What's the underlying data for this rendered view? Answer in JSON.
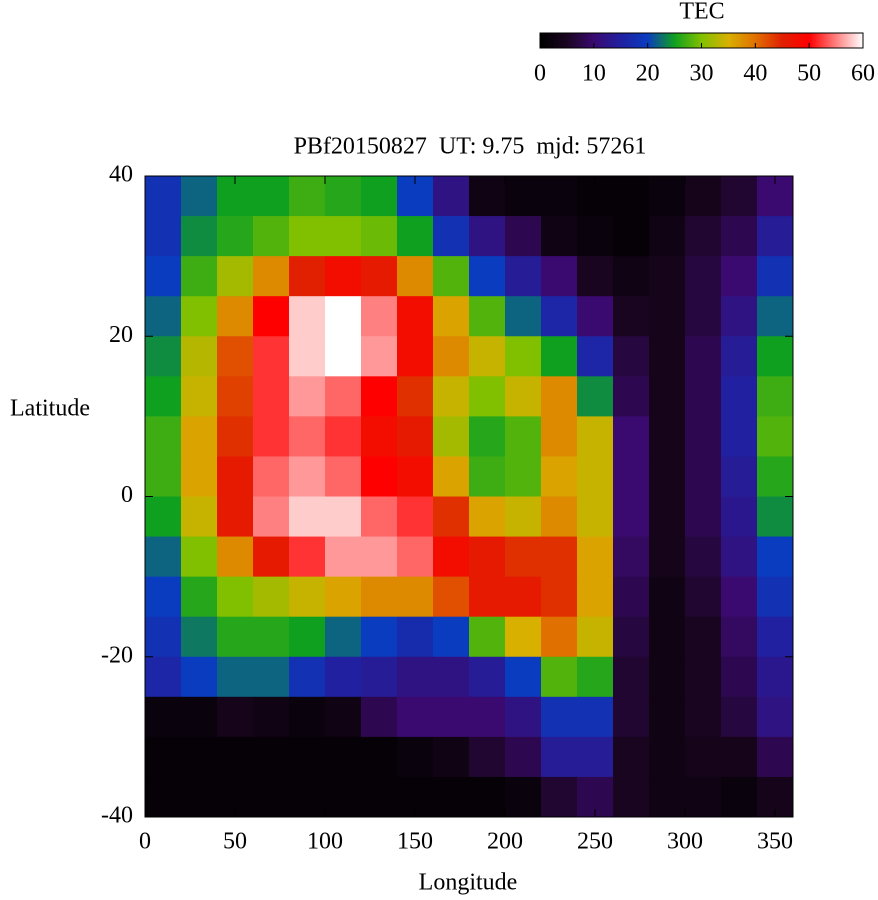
{
  "chart_data": {
    "type": "heatmap",
    "title": "PBf20150827  UT: 9.75  mjd: 57261",
    "x_label": "Longitude",
    "y_label": "Latitude",
    "colorbar_label": "TEC",
    "xlim": [
      0,
      360
    ],
    "xticks": [
      0,
      50,
      100,
      150,
      200,
      250,
      300,
      350
    ],
    "ylim": [
      -40,
      40
    ],
    "yticks": [
      -40,
      -20,
      0,
      20,
      40
    ],
    "zlim": [
      0,
      60
    ],
    "zticks": [
      0,
      10,
      20,
      30,
      40,
      50,
      60
    ],
    "colors": [
      "#000000",
      "#1a0520",
      "#3a0a70",
      "#2020a0",
      "#0a3cc0",
      "#10a020",
      "#80c000",
      "#d8b000",
      "#e07000",
      "#e02000",
      "#ff0000",
      "#ff8080",
      "#ffffff"
    ],
    "x": [
      10,
      30,
      50,
      70,
      90,
      110,
      130,
      150,
      170,
      190,
      210,
      230,
      250,
      270,
      290,
      310,
      330,
      350
    ],
    "y": [
      37.5,
      32.5,
      27.5,
      22.5,
      17.5,
      12.5,
      7.5,
      2.5,
      -2.5,
      -7.5,
      -12.5,
      -17.5,
      -22.5,
      -27.5,
      -32.5,
      -37.5
    ],
    "z": [
      [
        18,
        22,
        25,
        25,
        27,
        26,
        25,
        20,
        12,
        3,
        2,
        2,
        1,
        1,
        2,
        4,
        6,
        10
      ],
      [
        18,
        24,
        26,
        28,
        30,
        30,
        29,
        25,
        18,
        12,
        8,
        3,
        2,
        1,
        3,
        6,
        8,
        14
      ],
      [
        20,
        27,
        32,
        38,
        45,
        48,
        46,
        38,
        28,
        20,
        14,
        10,
        5,
        3,
        4,
        7,
        10,
        18
      ],
      [
        22,
        30,
        38,
        50,
        58,
        60,
        55,
        48,
        36,
        28,
        22,
        16,
        10,
        5,
        4,
        7,
        12,
        22
      ],
      [
        24,
        33,
        42,
        52,
        58,
        60,
        56,
        48,
        38,
        34,
        30,
        25,
        16,
        7,
        4,
        8,
        14,
        25
      ],
      [
        25,
        34,
        43,
        52,
        56,
        54,
        50,
        44,
        34,
        30,
        34,
        38,
        24,
        8,
        4,
        8,
        15,
        27
      ],
      [
        27,
        36,
        44,
        52,
        54,
        52,
        48,
        46,
        32,
        26,
        28,
        38,
        34,
        10,
        4,
        8,
        15,
        28
      ],
      [
        27,
        36,
        46,
        54,
        56,
        54,
        50,
        48,
        36,
        27,
        28,
        36,
        34,
        10,
        4,
        8,
        14,
        26
      ],
      [
        25,
        34,
        46,
        55,
        58,
        58,
        54,
        52,
        44,
        36,
        34,
        38,
        34,
        10,
        4,
        8,
        13,
        24
      ],
      [
        22,
        30,
        38,
        46,
        52,
        56,
        56,
        54,
        48,
        46,
        44,
        44,
        36,
        9,
        4,
        7,
        12,
        20
      ],
      [
        20,
        26,
        30,
        32,
        34,
        36,
        38,
        38,
        42,
        46,
        46,
        44,
        36,
        8,
        3,
        6,
        10,
        18
      ],
      [
        18,
        23,
        26,
        26,
        25,
        22,
        20,
        17,
        20,
        28,
        35,
        40,
        34,
        7,
        3,
        5,
        9,
        15
      ],
      [
        16,
        20,
        22,
        22,
        18,
        15,
        14,
        12,
        12,
        14,
        20,
        28,
        26,
        6,
        3,
        5,
        8,
        13
      ],
      [
        2,
        2,
        4,
        3,
        2,
        3,
        8,
        10,
        10,
        10,
        12,
        18,
        18,
        6,
        3,
        5,
        7,
        12
      ],
      [
        1,
        1,
        1,
        1,
        1,
        1,
        1,
        2,
        3,
        6,
        8,
        14,
        14,
        5,
        3,
        4,
        4,
        8
      ],
      [
        1,
        1,
        1,
        1,
        1,
        1,
        1,
        1,
        1,
        1,
        2,
        6,
        8,
        5,
        3,
        3,
        2,
        4
      ]
    ]
  }
}
